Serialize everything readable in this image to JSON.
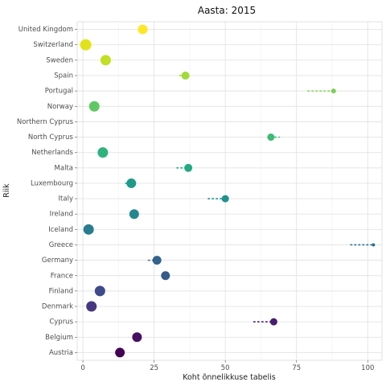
{
  "chart_data": {
    "type": "scatter",
    "title": "Aasta: 2015",
    "xlabel": "Koht õnnelikkuse tabelis",
    "ylabel": "Riik",
    "xlim": [
      -2,
      105
    ],
    "x_ticks": [
      0,
      25,
      50,
      75,
      100
    ],
    "grid": true,
    "legend": "none",
    "categories": [
      "Austria",
      "Belgium",
      "Cyprus",
      "Denmark",
      "Finland",
      "France",
      "Germany",
      "Greece",
      "Iceland",
      "Ireland",
      "Italy",
      "Luxembourg",
      "Malta",
      "Netherlands",
      "North Cyprus",
      "Northern Cyprus",
      "Norway",
      "Portugal",
      "Spain",
      "Sweden",
      "Switzerland",
      "United Kingdom"
    ],
    "points": [
      {
        "country": "Austria",
        "rank": 13,
        "color": "#440154",
        "size": 6
      },
      {
        "country": "Belgium",
        "rank": 19,
        "color": "#471063",
        "size": 6
      },
      {
        "country": "Cyprus",
        "rank": 67,
        "color": "#481d6f",
        "size": 4.5,
        "trail": [
          60,
          67
        ]
      },
      {
        "country": "Denmark",
        "rank": 3,
        "color": "#453781",
        "size": 6.5
      },
      {
        "country": "Finland",
        "rank": 6,
        "color": "#3e4a89",
        "size": 6.5
      },
      {
        "country": "France",
        "rank": 29,
        "color": "#375a8c",
        "size": 5.5
      },
      {
        "country": "Germany",
        "rank": 26,
        "color": "#33638d",
        "size": 5.5,
        "trail": [
          23,
          26
        ]
      },
      {
        "country": "Greece",
        "rank": 102,
        "color": "#2d708e",
        "size": 2,
        "trail": [
          94,
          102
        ]
      },
      {
        "country": "Iceland",
        "rank": 2,
        "color": "#287c8e",
        "size": 6.5
      },
      {
        "country": "Ireland",
        "rank": 18,
        "color": "#24878e",
        "size": 6
      },
      {
        "country": "Italy",
        "rank": 50,
        "color": "#21918c",
        "size": 4.5,
        "trail": [
          44,
          50
        ]
      },
      {
        "country": "Luxembourg",
        "rank": 17,
        "color": "#1f9a8a",
        "size": 6,
        "trail": [
          15,
          17
        ]
      },
      {
        "country": "Malta",
        "rank": 37,
        "color": "#23a983",
        "size": 5,
        "trail": [
          33,
          37
        ]
      },
      {
        "country": "Netherlands",
        "rank": 7,
        "color": "#2eb37c",
        "size": 6.5
      },
      {
        "country": "North Cyprus",
        "rank": 66,
        "color": "#3bbb75",
        "size": 4.5,
        "trail": [
          66,
          69
        ]
      },
      {
        "country": "Norway",
        "rank": 4,
        "color": "#5ec962",
        "size": 6.5
      },
      {
        "country": "Portugal",
        "rank": 88,
        "color": "#7ad151",
        "size": 3,
        "trail": [
          79,
          88
        ]
      },
      {
        "country": "Spain",
        "rank": 36,
        "color": "#a2da37",
        "size": 5,
        "trail": [
          34,
          36
        ]
      },
      {
        "country": "Sweden",
        "rank": 8,
        "color": "#c2df23",
        "size": 6.5
      },
      {
        "country": "Switzerland",
        "rank": 1,
        "color": "#e0e31a",
        "size": 7
      },
      {
        "country": "United Kingdom",
        "rank": 21,
        "color": "#fde725",
        "size": 6
      }
    ]
  }
}
